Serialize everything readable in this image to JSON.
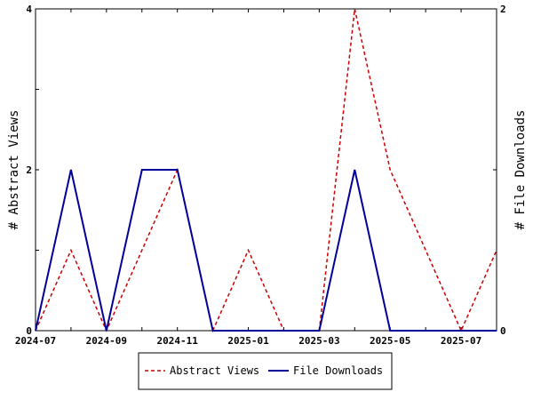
{
  "chart_data": {
    "type": "line",
    "x": [
      "2024-07",
      "2024-08",
      "2024-09",
      "2024-10",
      "2024-11",
      "2024-12",
      "2025-01",
      "2025-02",
      "2025-03",
      "2025-04",
      "2025-05",
      "2025-06",
      "2025-07",
      "2025-08"
    ],
    "x_tick_labels": [
      "2024-07",
      "2024-09",
      "2024-11",
      "2025-01",
      "2025-03",
      "2025-05",
      "2025-07"
    ],
    "series": [
      {
        "name": "Abstract Views",
        "axis": "left",
        "color": "#cc0000",
        "style": "dashed",
        "values": [
          0,
          1,
          0,
          1,
          2,
          0,
          1,
          0,
          0,
          4,
          2,
          1,
          0,
          1
        ]
      },
      {
        "name": "File Downloads",
        "axis": "right",
        "color": "#000099",
        "style": "solid",
        "values": [
          0,
          1,
          0,
          1,
          1,
          0,
          0,
          0,
          0,
          1,
          0,
          0,
          0,
          0
        ]
      }
    ],
    "ylabel": "# Abstract Views",
    "ylabel_right": "# File Downloads",
    "ylim": [
      0,
      4
    ],
    "ylim_right": [
      0,
      2
    ],
    "y_ticks": [
      0,
      2,
      4
    ],
    "y_ticks_right": [
      0,
      2
    ],
    "grid": false,
    "legend_position": "bottom"
  }
}
